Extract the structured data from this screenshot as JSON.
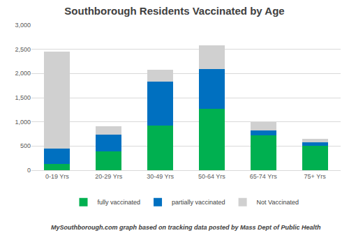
{
  "chart_data": {
    "type": "bar",
    "stacked": true,
    "title": "Southborough Residents Vaccinated by Age",
    "categories": [
      "0-19 Yrs",
      "20-29 Yrs",
      "30-49 Yrs",
      "50-64 Yrs",
      "65-74 Yrs",
      "75+ Yrs"
    ],
    "series": [
      {
        "name": "fully vaccinated",
        "color": "#00b050",
        "values": [
          130,
          390,
          930,
          1270,
          720,
          510
        ]
      },
      {
        "name": "partially vaccinated",
        "color": "#0070c0",
        "values": [
          310,
          350,
          900,
          820,
          100,
          70
        ]
      },
      {
        "name": "Not Vaccinated",
        "color": "#d0d0d0",
        "values": [
          2010,
          170,
          240,
          490,
          180,
          70
        ]
      }
    ],
    "ylim": [
      0,
      3000
    ],
    "yticks": [
      0,
      500,
      {
        "value": 1000,
        "label": "1,000"
      },
      {
        "value": 1500,
        "label": "1,500"
      },
      {
        "value": 2000,
        "label": "2,000"
      },
      {
        "value": 2500,
        "label": "2,500"
      },
      {
        "value": 3000,
        "label": "3,000"
      }
    ],
    "grid": true,
    "legend": "bottom",
    "annotations": [
      "MySouthborough.com graph based on tracking data posted by Mass Dept of Public Health"
    ]
  }
}
